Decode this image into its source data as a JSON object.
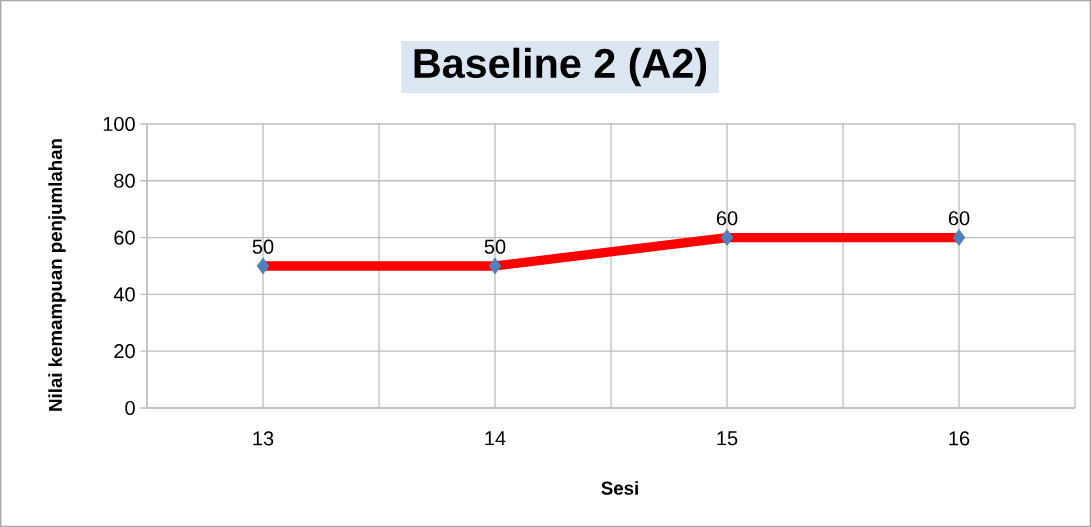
{
  "chart_data": {
    "type": "line",
    "title": "Baseline 2 (A2)",
    "xlabel": "Sesi",
    "ylabel": "Nilai kemampuan penjumlahan",
    "categories": [
      "13",
      "14",
      "15",
      "16"
    ],
    "series": [
      {
        "color": "#ff0000",
        "values": [
          50,
          50,
          60,
          60
        ]
      }
    ],
    "ylim": [
      0,
      100
    ],
    "yticks": [
      0,
      20,
      40,
      60,
      80,
      100
    ],
    "grid": true,
    "marker": "diamond",
    "line_style": "solid",
    "data_labels": true
  }
}
